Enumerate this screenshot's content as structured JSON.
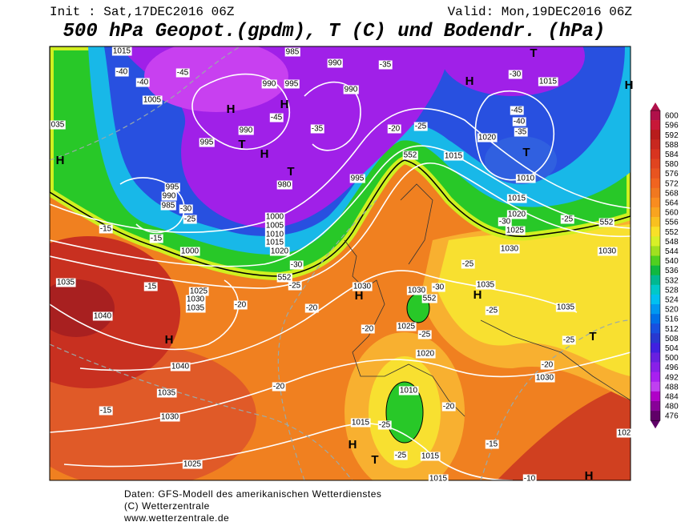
{
  "header": {
    "init": "Init : Sat,17DEC2016 06Z",
    "valid": "Valid: Mon,19DEC2016 06Z",
    "title": "500 hPa Geopot.(gpdm), T (C) und Bodendr. (hPa)"
  },
  "map": {
    "labels": [
      "1015",
      "-40",
      "-45",
      "-40",
      "1005",
      "H",
      "H",
      "985",
      "990",
      "990",
      "995",
      "-35",
      "990",
      "-45",
      "-35",
      "990",
      "T",
      "995",
      "H",
      "-20",
      "-25",
      "1015",
      "T",
      "980",
      "995",
      "995",
      "990",
      "985",
      "-30",
      "-25",
      "-15",
      "-15",
      "1000",
      "1000",
      "1005",
      "1010",
      "1015",
      "1020",
      "-30",
      "-25",
      "1035",
      "-15",
      "1025",
      "1030",
      "1035",
      "-20",
      "-20",
      "1040",
      "H",
      "1040",
      "1035",
      "-15",
      "1030",
      "1025",
      "-20",
      "1030",
      "H",
      "552",
      "H",
      "-30",
      "1015",
      "-45",
      "-40",
      "-35",
      "1020",
      "T",
      "1010",
      "1015",
      "1020",
      "-30",
      "1025",
      "-25",
      "552",
      "1030",
      "-25",
      "1030",
      "1030",
      "-30",
      "552",
      "1035",
      "H",
      "-25",
      "1035",
      "T",
      "-25",
      "1025",
      "-25",
      "-20",
      "1020",
      "-20",
      "1030",
      "1010",
      "-20",
      "1015",
      "-25",
      "H",
      "T",
      "-25",
      "1015",
      "-15",
      "1015",
      "-10",
      "H",
      "102",
      "T",
      "H",
      "035",
      "H",
      "552"
    ]
  },
  "colorbar": {
    "ticks": [
      600,
      596,
      592,
      588,
      584,
      580,
      576,
      572,
      568,
      564,
      560,
      556,
      552,
      548,
      544,
      540,
      536,
      532,
      528,
      524,
      520,
      516,
      512,
      508,
      504,
      500,
      496,
      492,
      488,
      484,
      480,
      476
    ],
    "colors": [
      "#b0104a",
      "#c81838",
      "#b81c1c",
      "#c82820",
      "#d83420",
      "#e04420",
      "#e85420",
      "#f06420",
      "#f07820",
      "#f88c20",
      "#f8a420",
      "#f8c020",
      "#f8e028",
      "#d8f028",
      "#a0e020",
      "#50d020",
      "#10b840",
      "#00b890",
      "#00c8c8",
      "#00c0f0",
      "#0098f0",
      "#0070e8",
      "#1850e0",
      "#2838d0",
      "#4020e0",
      "#6820e0",
      "#8820e8",
      "#a820f0",
      "#c040f0",
      "#b000c8",
      "#880098",
      "#600068"
    ]
  },
  "footer": {
    "lines": [
      "Daten: GFS-Modell des amerikanischen Wetterdienstes",
      "(C) Wetterzentrale",
      "www.wetterzentrale.de"
    ]
  }
}
